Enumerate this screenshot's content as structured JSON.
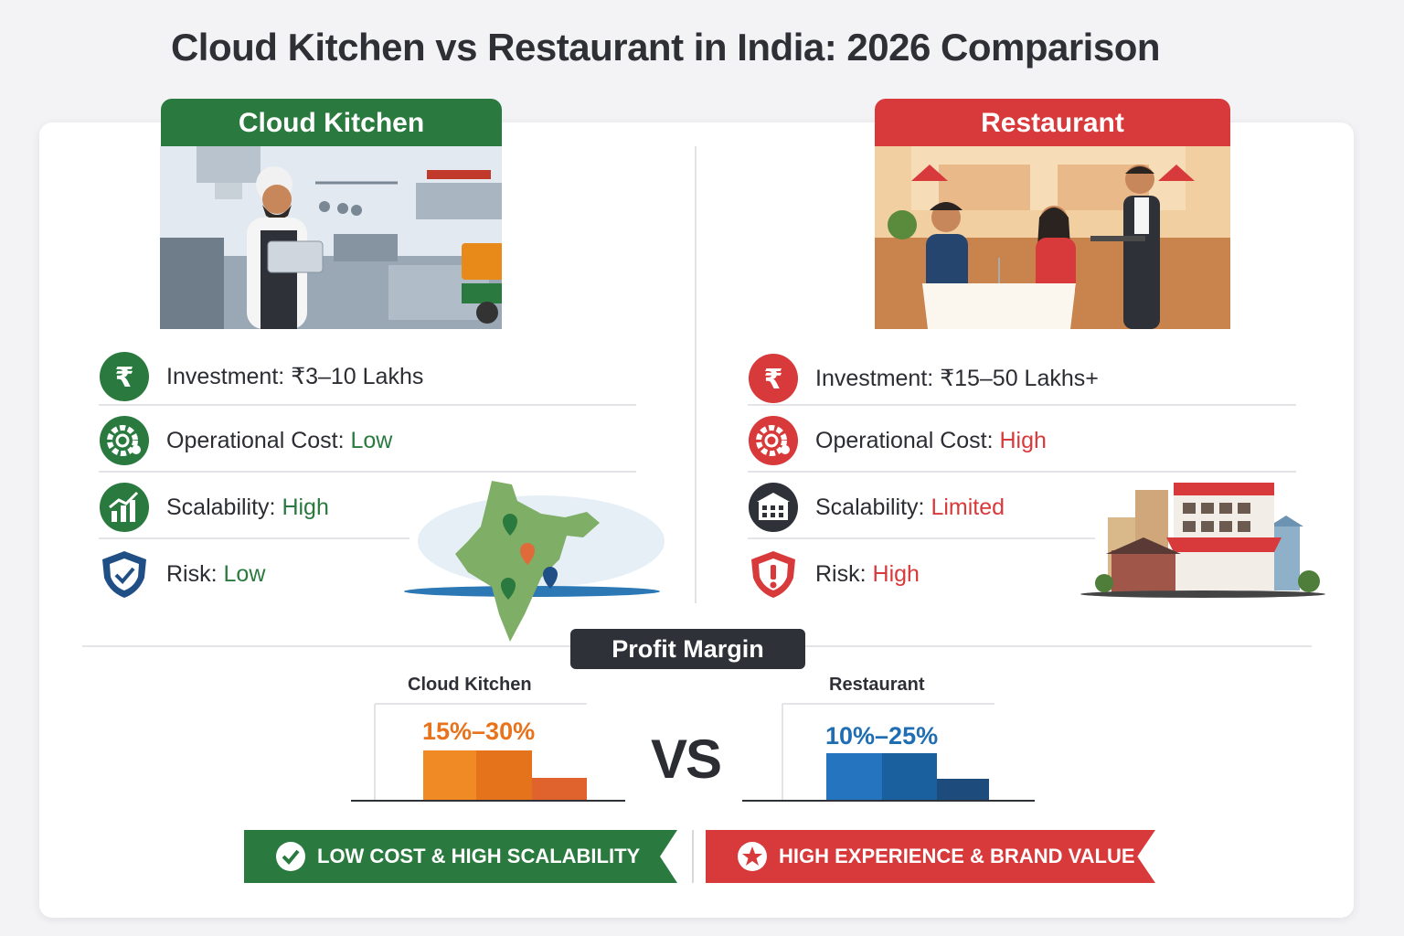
{
  "title": "Cloud Kitchen vs Restaurant in India: 2026 Comparison",
  "cloud_kitchen": {
    "header": "Cloud Kitchen",
    "features": [
      {
        "label": "Investment:",
        "value": "₹3–10 Lakhs",
        "icon": "rupee-icon"
      },
      {
        "label": "Operational Cost:",
        "value": "Low",
        "icon": "gear-icon"
      },
      {
        "label": "Scalability:",
        "value": "High",
        "icon": "growth-chart-icon"
      },
      {
        "label": "Risk:",
        "value": "Low",
        "icon": "shield-check-icon"
      }
    ]
  },
  "restaurant": {
    "header": "Restaurant",
    "features": [
      {
        "label": "Investment:",
        "value": "₹15–50 Lakhs+",
        "icon": "rupee-icon"
      },
      {
        "label": "Operational Cost:",
        "value": "High",
        "icon": "gear-icon"
      },
      {
        "label": "Scalability:",
        "value": "Limited",
        "icon": "building-icon"
      },
      {
        "label": "Risk:",
        "value": "High",
        "icon": "shield-alert-icon"
      }
    ]
  },
  "profit_margin": {
    "title": "Profit Margin",
    "cloud_kitchen_label": "Cloud Kitchen",
    "cloud_kitchen_value": "15%–30%",
    "restaurant_label": "Restaurant",
    "restaurant_value": "10%–25%",
    "vs": "VS"
  },
  "ribbons": {
    "green": "LOW COST & HIGH SCALABILITY",
    "red": "HIGH EXPERIENCE & BRAND VALUE"
  },
  "colors": {
    "green": "#2a7a3f",
    "red": "#d8393a",
    "orange": "#e8731c",
    "blue": "#1f6db3",
    "dark": "#2e3138"
  }
}
